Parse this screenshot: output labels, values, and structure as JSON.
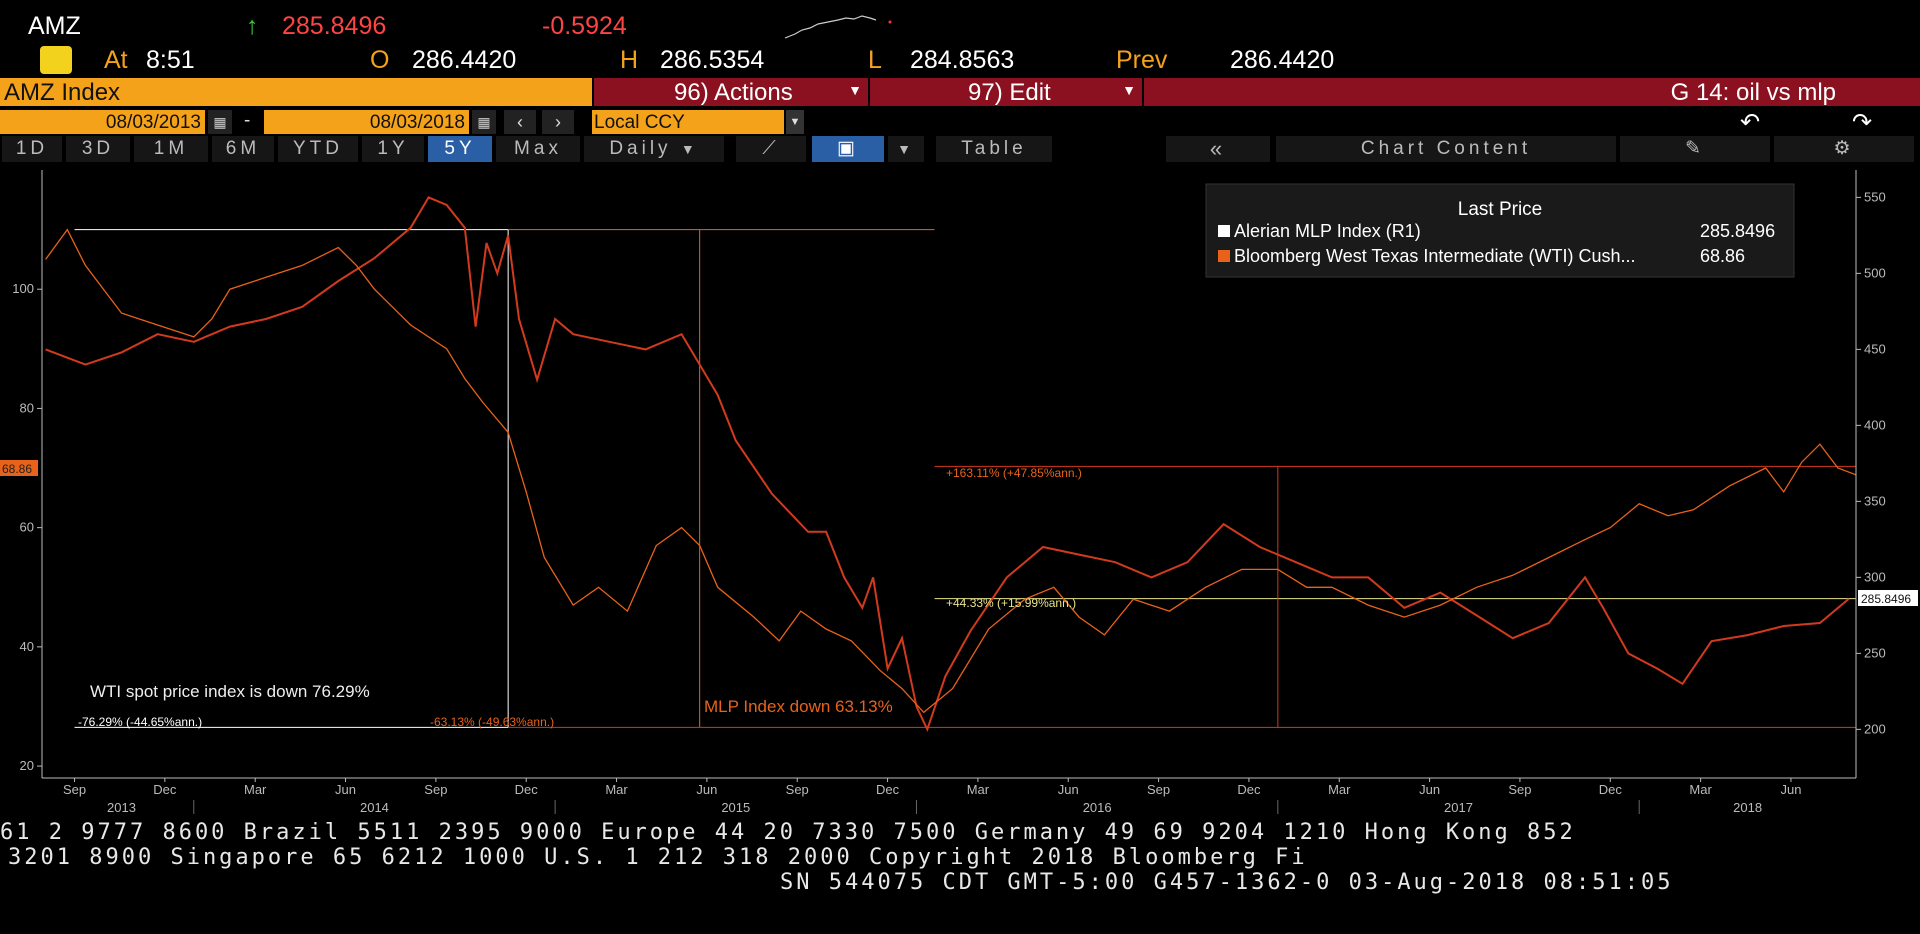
{
  "header": {
    "ticker": "AMZ",
    "arrow": "↑",
    "last": "285.8496",
    "change": "-0.5924",
    "at_label": "At",
    "at_time": "8:51",
    "open_label": "O",
    "open": "286.4420",
    "high_label": "H",
    "high": "286.5354",
    "low_label": "L",
    "low": "284.8563",
    "prev_label": "Prev",
    "prev": "286.4420"
  },
  "toolbar": {
    "security": "AMZ Index",
    "actions": "96) Actions",
    "edit": "97) Edit",
    "chart_name": "G 14: oil vs mlp",
    "start_date": "08/03/2013",
    "dash": "-",
    "end_date": "08/03/2018",
    "currency": "Local CCY",
    "periods": [
      "1D",
      "3D",
      "1M",
      "6M",
      "YTD",
      "1Y",
      "5Y",
      "Max"
    ],
    "active_period": "5Y",
    "frequency": "Daily",
    "table": "Table",
    "chart_content": "Chart Content"
  },
  "chart_data": {
    "type": "line",
    "legend": {
      "title": "Last Price",
      "placement": "top-right",
      "entries": [
        {
          "name": "Alerian MLP Index  (R1)",
          "value": "285.8496",
          "color": "#ffffff"
        },
        {
          "name": "Bloomberg West Texas Intermediate (WTI) Cush...",
          "value": "68.86",
          "color": "#e8621a"
        }
      ]
    },
    "left_axis": {
      "ticks": [
        20,
        40,
        60,
        80,
        100
      ],
      "range": [
        18,
        120
      ]
    },
    "right_axis": {
      "ticks": [
        200,
        250,
        300,
        350,
        400,
        450,
        500,
        550
      ],
      "range": [
        168,
        568
      ]
    },
    "x_axis": {
      "months": [
        "Sep",
        "Dec",
        "Mar",
        "Jun",
        "Sep",
        "Dec",
        "Mar",
        "Jun",
        "Sep",
        "Dec",
        "Mar",
        "Jun",
        "Sep",
        "Dec",
        "Mar",
        "Jun",
        "Sep",
        "Dec",
        "Mar",
        "Jun"
      ],
      "years": [
        "2013",
        "2014",
        "2015",
        "2016",
        "2017",
        "2018"
      ],
      "range": [
        2013.58,
        2018.6
      ]
    },
    "wti_last_label": "68.86",
    "mlp_last_label": "285.8496",
    "series": [
      {
        "name": "Alerian MLP Index  (R1)",
        "axis": "right",
        "color": "#d23a1e",
        "points": [
          [
            2013.59,
            450
          ],
          [
            2013.7,
            440
          ],
          [
            2013.8,
            448
          ],
          [
            2013.9,
            460
          ],
          [
            2014.0,
            455
          ],
          [
            2014.1,
            465
          ],
          [
            2014.2,
            470
          ],
          [
            2014.3,
            478
          ],
          [
            2014.4,
            495
          ],
          [
            2014.5,
            510
          ],
          [
            2014.6,
            530
          ],
          [
            2014.65,
            550
          ],
          [
            2014.7,
            545
          ],
          [
            2014.75,
            530
          ],
          [
            2014.78,
            465
          ],
          [
            2014.81,
            520
          ],
          [
            2014.84,
            500
          ],
          [
            2014.87,
            525
          ],
          [
            2014.9,
            470
          ],
          [
            2014.95,
            430
          ],
          [
            2015.0,
            470
          ],
          [
            2015.05,
            460
          ],
          [
            2015.15,
            455
          ],
          [
            2015.25,
            450
          ],
          [
            2015.35,
            460
          ],
          [
            2015.4,
            440
          ],
          [
            2015.45,
            420
          ],
          [
            2015.5,
            390
          ],
          [
            2015.6,
            355
          ],
          [
            2015.7,
            330
          ],
          [
            2015.75,
            330
          ],
          [
            2015.8,
            300
          ],
          [
            2015.85,
            280
          ],
          [
            2015.88,
            300
          ],
          [
            2015.92,
            240
          ],
          [
            2015.96,
            260
          ],
          [
            2016.0,
            215
          ],
          [
            2016.03,
            200
          ],
          [
            2016.08,
            235
          ],
          [
            2016.15,
            265
          ],
          [
            2016.25,
            300
          ],
          [
            2016.35,
            320
          ],
          [
            2016.45,
            315
          ],
          [
            2016.55,
            310
          ],
          [
            2016.65,
            300
          ],
          [
            2016.75,
            310
          ],
          [
            2016.85,
            335
          ],
          [
            2016.95,
            320
          ],
          [
            2017.05,
            310
          ],
          [
            2017.15,
            300
          ],
          [
            2017.25,
            300
          ],
          [
            2017.35,
            280
          ],
          [
            2017.45,
            290
          ],
          [
            2017.55,
            275
          ],
          [
            2017.65,
            260
          ],
          [
            2017.75,
            270
          ],
          [
            2017.85,
            300
          ],
          [
            2017.9,
            280
          ],
          [
            2017.97,
            250
          ],
          [
            2018.05,
            240
          ],
          [
            2018.12,
            230
          ],
          [
            2018.2,
            258
          ],
          [
            2018.3,
            262
          ],
          [
            2018.4,
            268
          ],
          [
            2018.5,
            270
          ],
          [
            2018.58,
            285.8
          ]
        ]
      },
      {
        "name": "Bloomberg West Texas Intermediate (WTI) Cush...",
        "axis": "left",
        "color": "#e8621a",
        "points": [
          [
            2013.59,
            105
          ],
          [
            2013.65,
            110
          ],
          [
            2013.7,
            104
          ],
          [
            2013.8,
            96
          ],
          [
            2013.9,
            94
          ],
          [
            2014.0,
            92
          ],
          [
            2014.05,
            95
          ],
          [
            2014.1,
            100
          ],
          [
            2014.2,
            102
          ],
          [
            2014.3,
            104
          ],
          [
            2014.4,
            107
          ],
          [
            2014.45,
            104
          ],
          [
            2014.5,
            100
          ],
          [
            2014.55,
            97
          ],
          [
            2014.6,
            94
          ],
          [
            2014.7,
            90
          ],
          [
            2014.75,
            85
          ],
          [
            2014.8,
            81
          ],
          [
            2014.87,
            76
          ],
          [
            2014.92,
            66
          ],
          [
            2014.97,
            55
          ],
          [
            2015.05,
            47
          ],
          [
            2015.12,
            50
          ],
          [
            2015.2,
            46
          ],
          [
            2015.28,
            57
          ],
          [
            2015.35,
            60
          ],
          [
            2015.4,
            57
          ],
          [
            2015.45,
            50
          ],
          [
            2015.55,
            45
          ],
          [
            2015.62,
            41
          ],
          [
            2015.68,
            46
          ],
          [
            2015.75,
            43
          ],
          [
            2015.82,
            41
          ],
          [
            2015.9,
            36
          ],
          [
            2015.96,
            33
          ],
          [
            2016.02,
            29
          ],
          [
            2016.1,
            33
          ],
          [
            2016.2,
            43
          ],
          [
            2016.3,
            48
          ],
          [
            2016.38,
            50
          ],
          [
            2016.45,
            45
          ],
          [
            2016.52,
            42
          ],
          [
            2016.6,
            48
          ],
          [
            2016.7,
            46
          ],
          [
            2016.8,
            50
          ],
          [
            2016.9,
            53
          ],
          [
            2017.0,
            53
          ],
          [
            2017.08,
            50
          ],
          [
            2017.15,
            50
          ],
          [
            2017.25,
            47
          ],
          [
            2017.35,
            45
          ],
          [
            2017.45,
            47
          ],
          [
            2017.55,
            50
          ],
          [
            2017.65,
            52
          ],
          [
            2017.75,
            55
          ],
          [
            2017.85,
            58
          ],
          [
            2017.92,
            60
          ],
          [
            2018.0,
            64
          ],
          [
            2018.08,
            62
          ],
          [
            2018.15,
            63
          ],
          [
            2018.25,
            67
          ],
          [
            2018.35,
            70
          ],
          [
            2018.4,
            66
          ],
          [
            2018.45,
            71
          ],
          [
            2018.5,
            74
          ],
          [
            2018.55,
            70
          ],
          [
            2018.6,
            68.86
          ]
        ]
      }
    ],
    "annotations": {
      "wti_text": "WTI spot price index is down 76.29%",
      "wti_pct": "-76.29% (-44.65%ann.)",
      "mlp_pct": "-63.13% (-49.63%ann.)",
      "mlp_text": "MLP Index down 63.13%",
      "up_163": "+163.11% (+47.85%ann.)",
      "up_44": "+44.33% (+15.99%ann.)"
    }
  },
  "footer": {
    "line1": "61 2 9777 8600 Brazil 5511 2395 9000 Europe 44 20 7330 7500 Germany 49 69 9204 1210 Hong Kong 852",
    "line2": "3201 8900       Singapore 65 6212 1000       U.S. 1 212 318 2000       Copyright 2018 Bloomberg Fi",
    "line3": "SN 544075 CDT  GMT-5:00 G457-1362-0 03-Aug-2018 08:51:05"
  }
}
